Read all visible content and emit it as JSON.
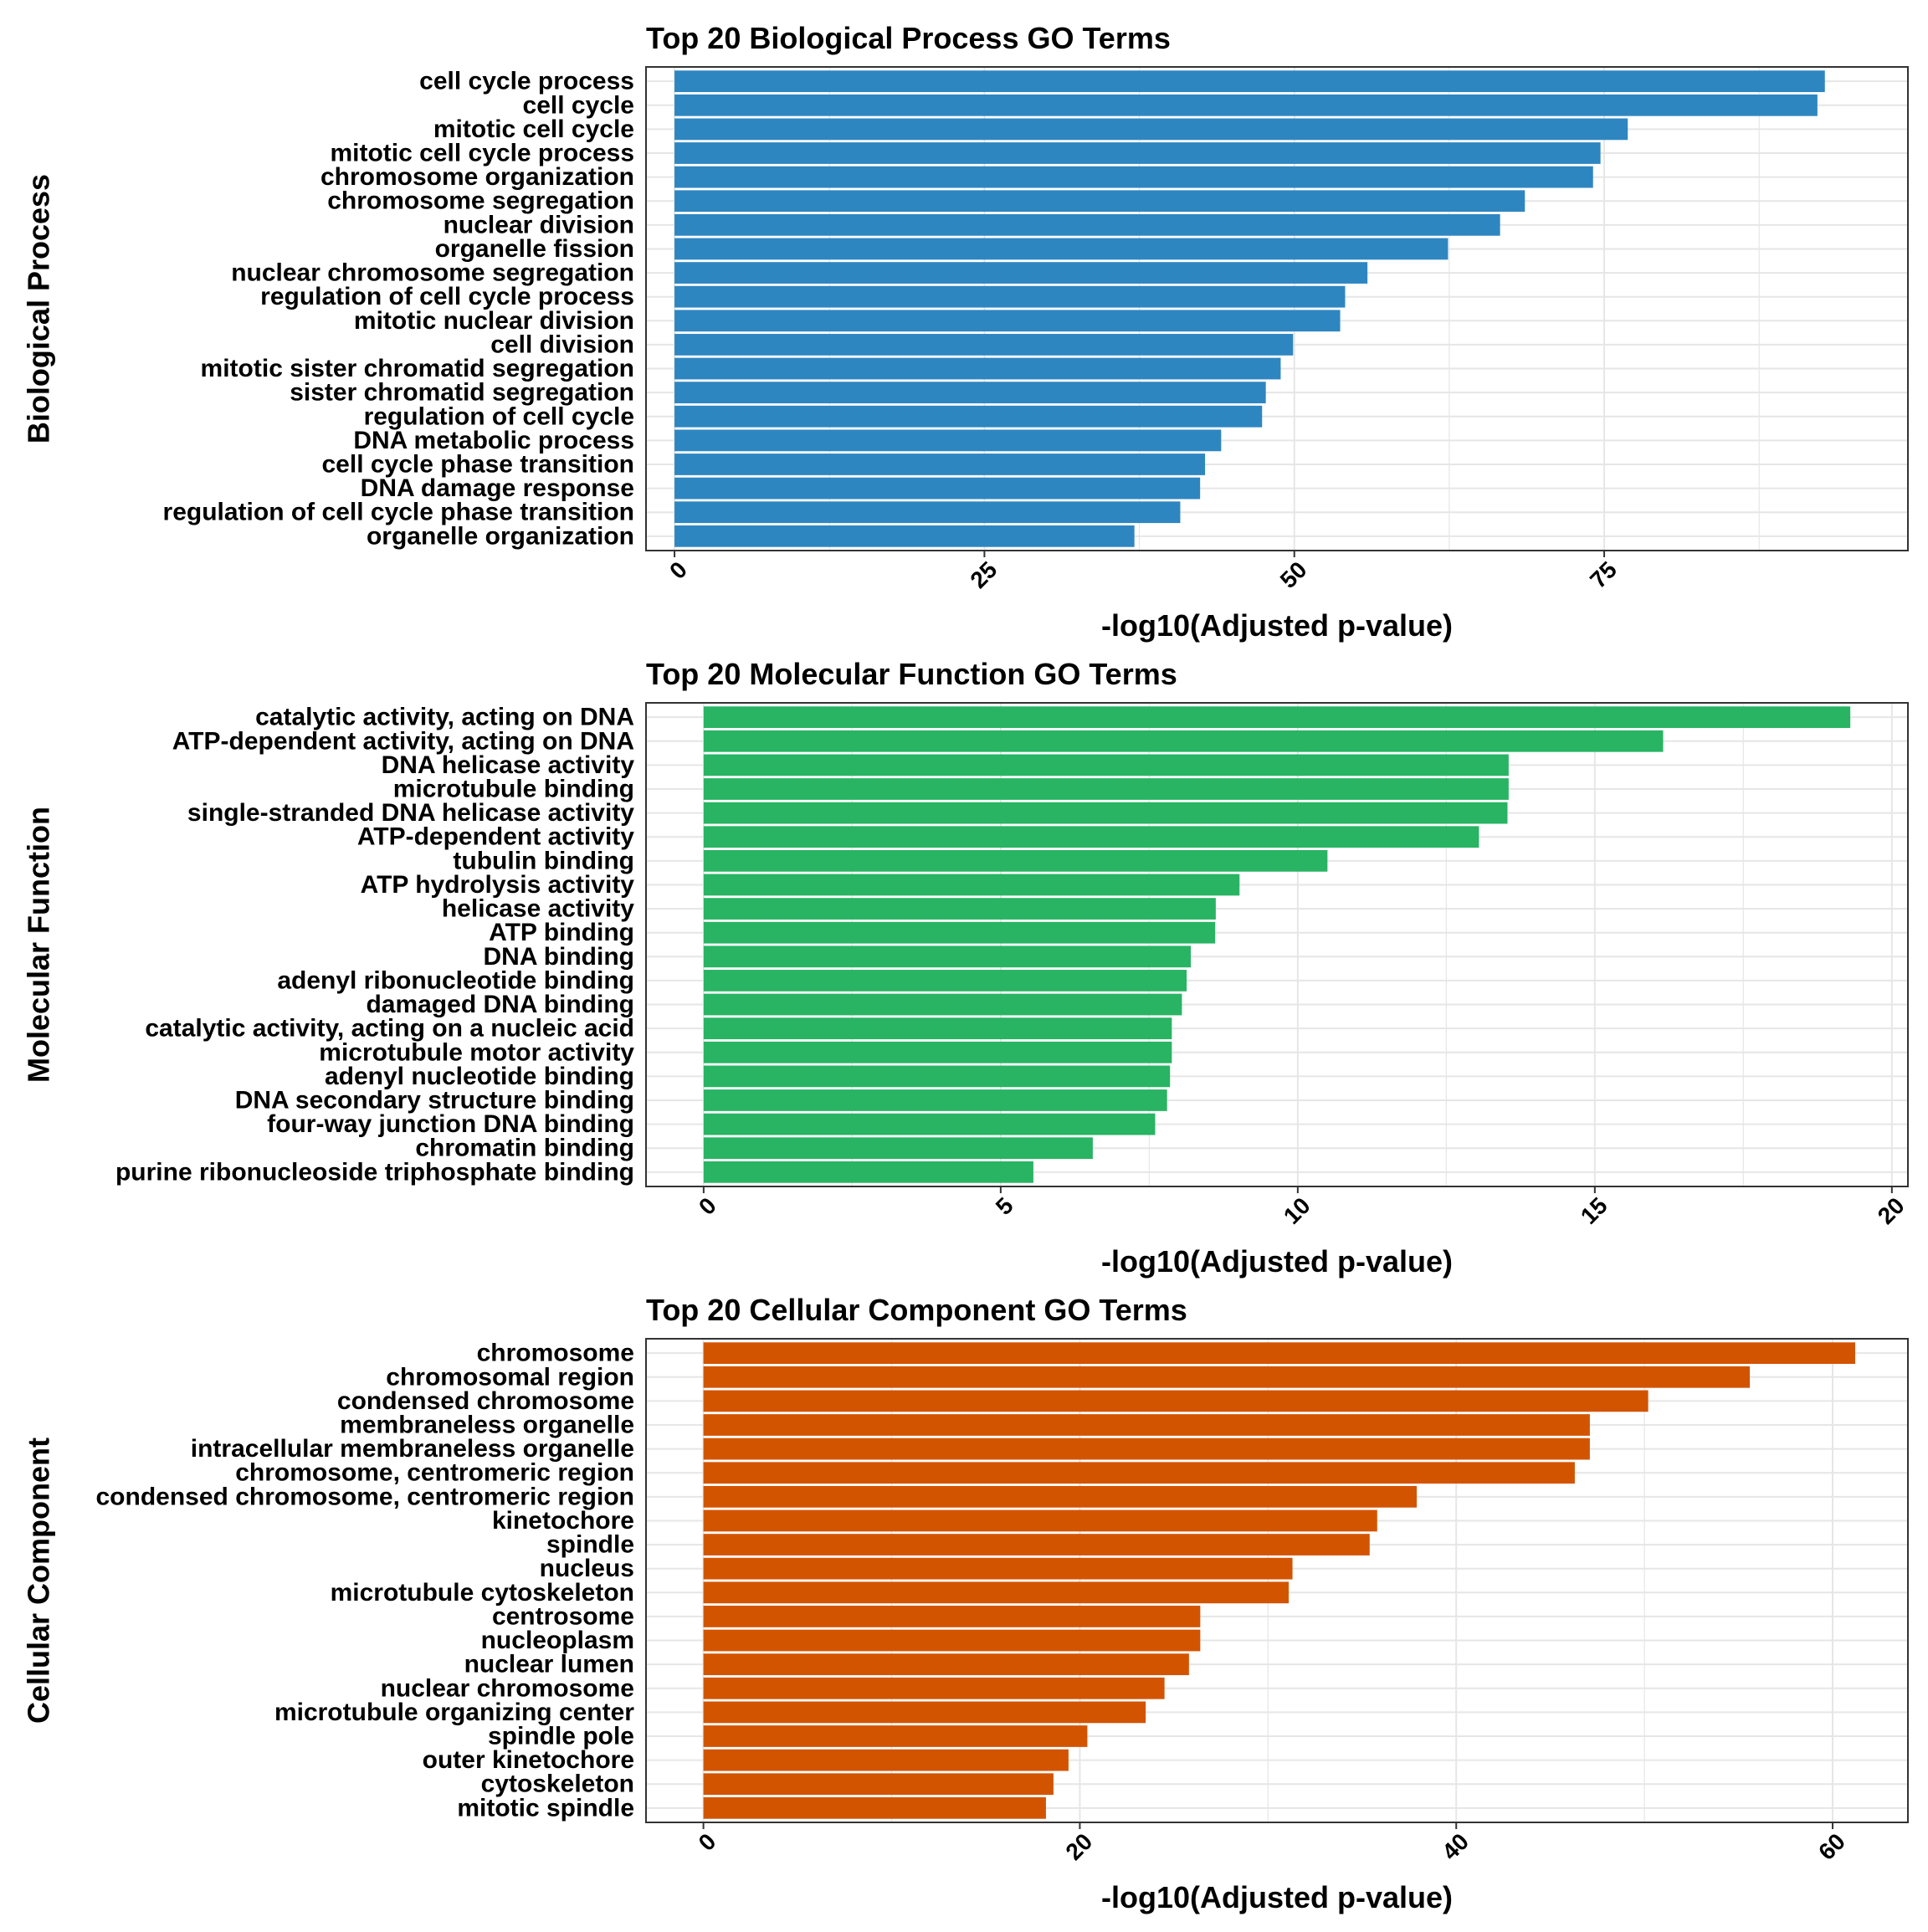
{
  "colors": {
    "bp": "#2E86C1",
    "mf": "#28B463",
    "cc": "#D35400",
    "grid": "#E6E6E6",
    "border": "#333333"
  },
  "chart_data": [
    {
      "type": "bar",
      "orientation": "horizontal",
      "title": "Top 20 Biological Process GO Terms",
      "ylabel": "Biological Process",
      "xlabel": "-log10(Adjusted p-value)",
      "xticks": [
        0,
        25,
        50,
        75
      ],
      "xlim": [
        -2.3,
        99.5
      ],
      "categories": [
        "cell cycle process",
        "cell cycle",
        "mitotic cell cycle",
        "mitotic cell cycle process",
        "chromosome organization",
        "chromosome segregation",
        "nuclear division",
        "organelle fission",
        "nuclear chromosome segregation",
        "regulation of cell cycle process",
        "mitotic nuclear division",
        "cell division",
        "mitotic sister chromatid segregation",
        "sister chromatid segregation",
        "regulation of cell cycle",
        "DNA metabolic process",
        "cell cycle phase transition",
        "DNA damage response",
        "regulation of cell cycle phase transition",
        "organelle organization"
      ],
      "values": [
        92.8,
        92.2,
        76.9,
        74.7,
        74.1,
        68.6,
        66.6,
        62.4,
        55.9,
        54.1,
        53.7,
        49.9,
        48.9,
        47.7,
        47.4,
        44.1,
        42.8,
        42.4,
        40.8,
        37.1
      ],
      "color": "#2E86C1",
      "grid": true
    },
    {
      "type": "bar",
      "orientation": "horizontal",
      "title": "Top 20 Molecular Function GO Terms",
      "ylabel": "Molecular Function",
      "xlabel": "-log10(Adjusted p-value)",
      "xticks": [
        0,
        5,
        10,
        15,
        20
      ],
      "xlim": [
        -0.97,
        20.27
      ],
      "categories": [
        "catalytic activity, acting on DNA",
        "ATP-dependent activity, acting on DNA",
        "DNA helicase activity",
        "microtubule binding",
        "single-stranded DNA helicase activity",
        "ATP-dependent activity",
        "tubulin binding",
        "ATP hydrolysis activity",
        "helicase activity",
        "ATP binding",
        "DNA binding",
        "adenyl ribonucleotide binding",
        "damaged DNA binding",
        "catalytic activity, acting on a nucleic acid",
        "microtubule motor activity",
        "adenyl nucleotide binding",
        "DNA secondary structure binding",
        "four-way junction DNA binding",
        "chromatin binding",
        "purine ribonucleoside triphosphate binding"
      ],
      "values": [
        19.3,
        16.15,
        13.55,
        13.55,
        13.53,
        13.05,
        10.5,
        9.02,
        8.62,
        8.61,
        8.2,
        8.13,
        8.05,
        7.88,
        7.88,
        7.85,
        7.8,
        7.6,
        6.55,
        5.55
      ],
      "color": "#28B463",
      "grid": true
    },
    {
      "type": "bar",
      "orientation": "horizontal",
      "title": "Top 20 Cellular Component GO Terms",
      "ylabel": "Cellular Component",
      "xlabel": "-log10(Adjusted p-value)",
      "xticks": [
        0,
        20,
        40,
        60
      ],
      "xlim": [
        -3.05,
        64.0
      ],
      "categories": [
        "chromosome",
        "chromosomal region",
        "condensed chromosome",
        "membraneless organelle",
        "intracellular membraneless organelle",
        "chromosome, centromeric region",
        "condensed chromosome, centromeric region",
        "kinetochore",
        "spindle",
        "nucleus",
        "microtubule cytoskeleton",
        "centrosome",
        "nucleoplasm",
        "nuclear lumen",
        "nuclear chromosome",
        "microtubule organizing center",
        "spindle pole",
        "outer kinetochore",
        "cytoskeleton",
        "mitotic spindle"
      ],
      "values": [
        61.2,
        55.6,
        50.2,
        47.1,
        47.1,
        46.3,
        37.9,
        35.8,
        35.4,
        31.3,
        31.1,
        26.4,
        26.4,
        25.8,
        24.5,
        23.5,
        20.4,
        19.4,
        18.6,
        18.2
      ],
      "color": "#D35400",
      "grid": true
    }
  ]
}
